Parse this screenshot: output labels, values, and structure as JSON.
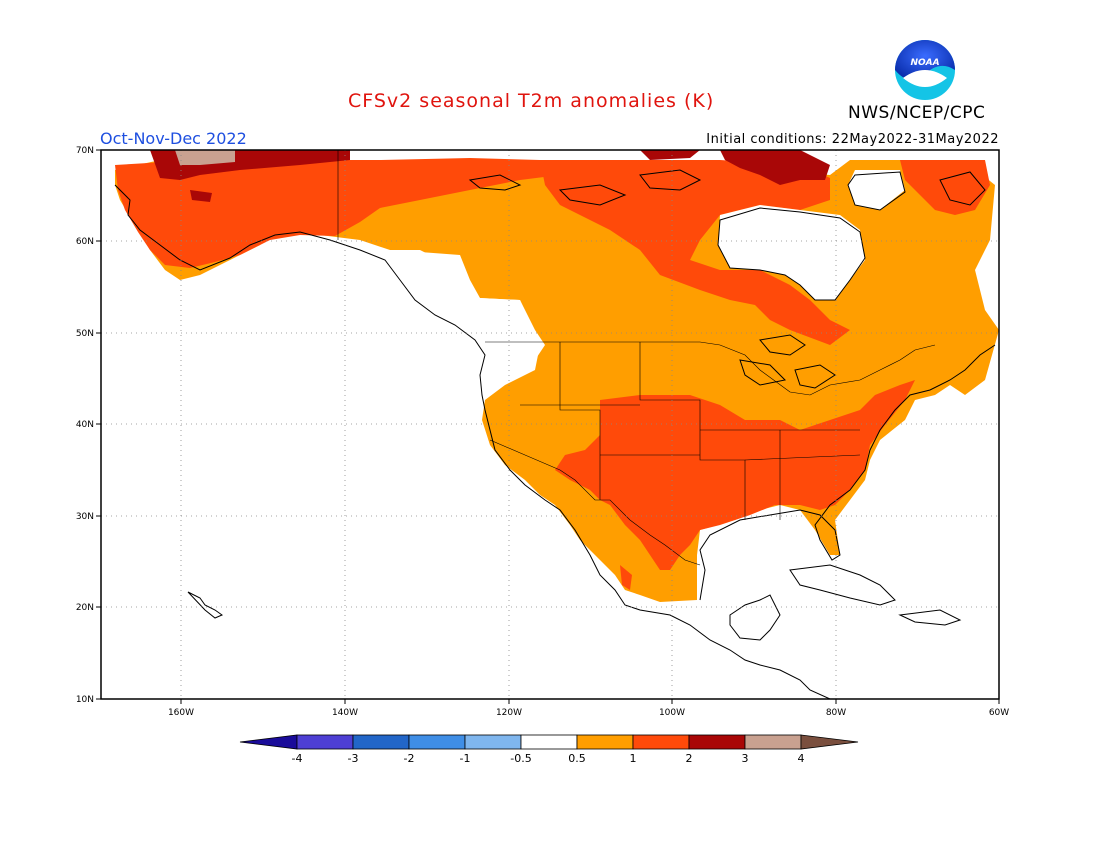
{
  "title": "CFSv2 seasonal T2m anomalies (K)",
  "agency": "NWS/NCEP/CPC",
  "logo_text": "NOAA",
  "period": "Oct-Nov-Dec 2022",
  "initial_conditions": "Initial conditions: 22May2022-31May2022",
  "map": {
    "lon_range": [
      -172,
      -60
    ],
    "lat_range": [
      10,
      70
    ],
    "lat_labels": [
      "10N",
      "20N",
      "30N",
      "40N",
      "50N",
      "60N",
      "70N"
    ],
    "lon_labels": [
      "160W",
      "140W",
      "120W",
      "100W",
      "80W",
      "60W"
    ],
    "grid": true
  },
  "colorbar": {
    "labels": [
      "-4",
      "-3",
      "-2",
      "-1",
      "-0.5",
      "0.5",
      "1",
      "2",
      "3",
      "4"
    ],
    "colors": [
      "#1a0c9a",
      "#4e3fd4",
      "#2266c8",
      "#3f8ee6",
      "#7fb6ee",
      "#ffffff",
      "#ff9e00",
      "#ff4a0a",
      "#a90707",
      "#c9a190",
      "#7a4f3e"
    ]
  },
  "legend_colors": {
    "c05_1": "#ff9e00",
    "c1_2": "#ff4a0a",
    "c2_3": "#a90707",
    "c3_4": "#c9a190"
  }
}
